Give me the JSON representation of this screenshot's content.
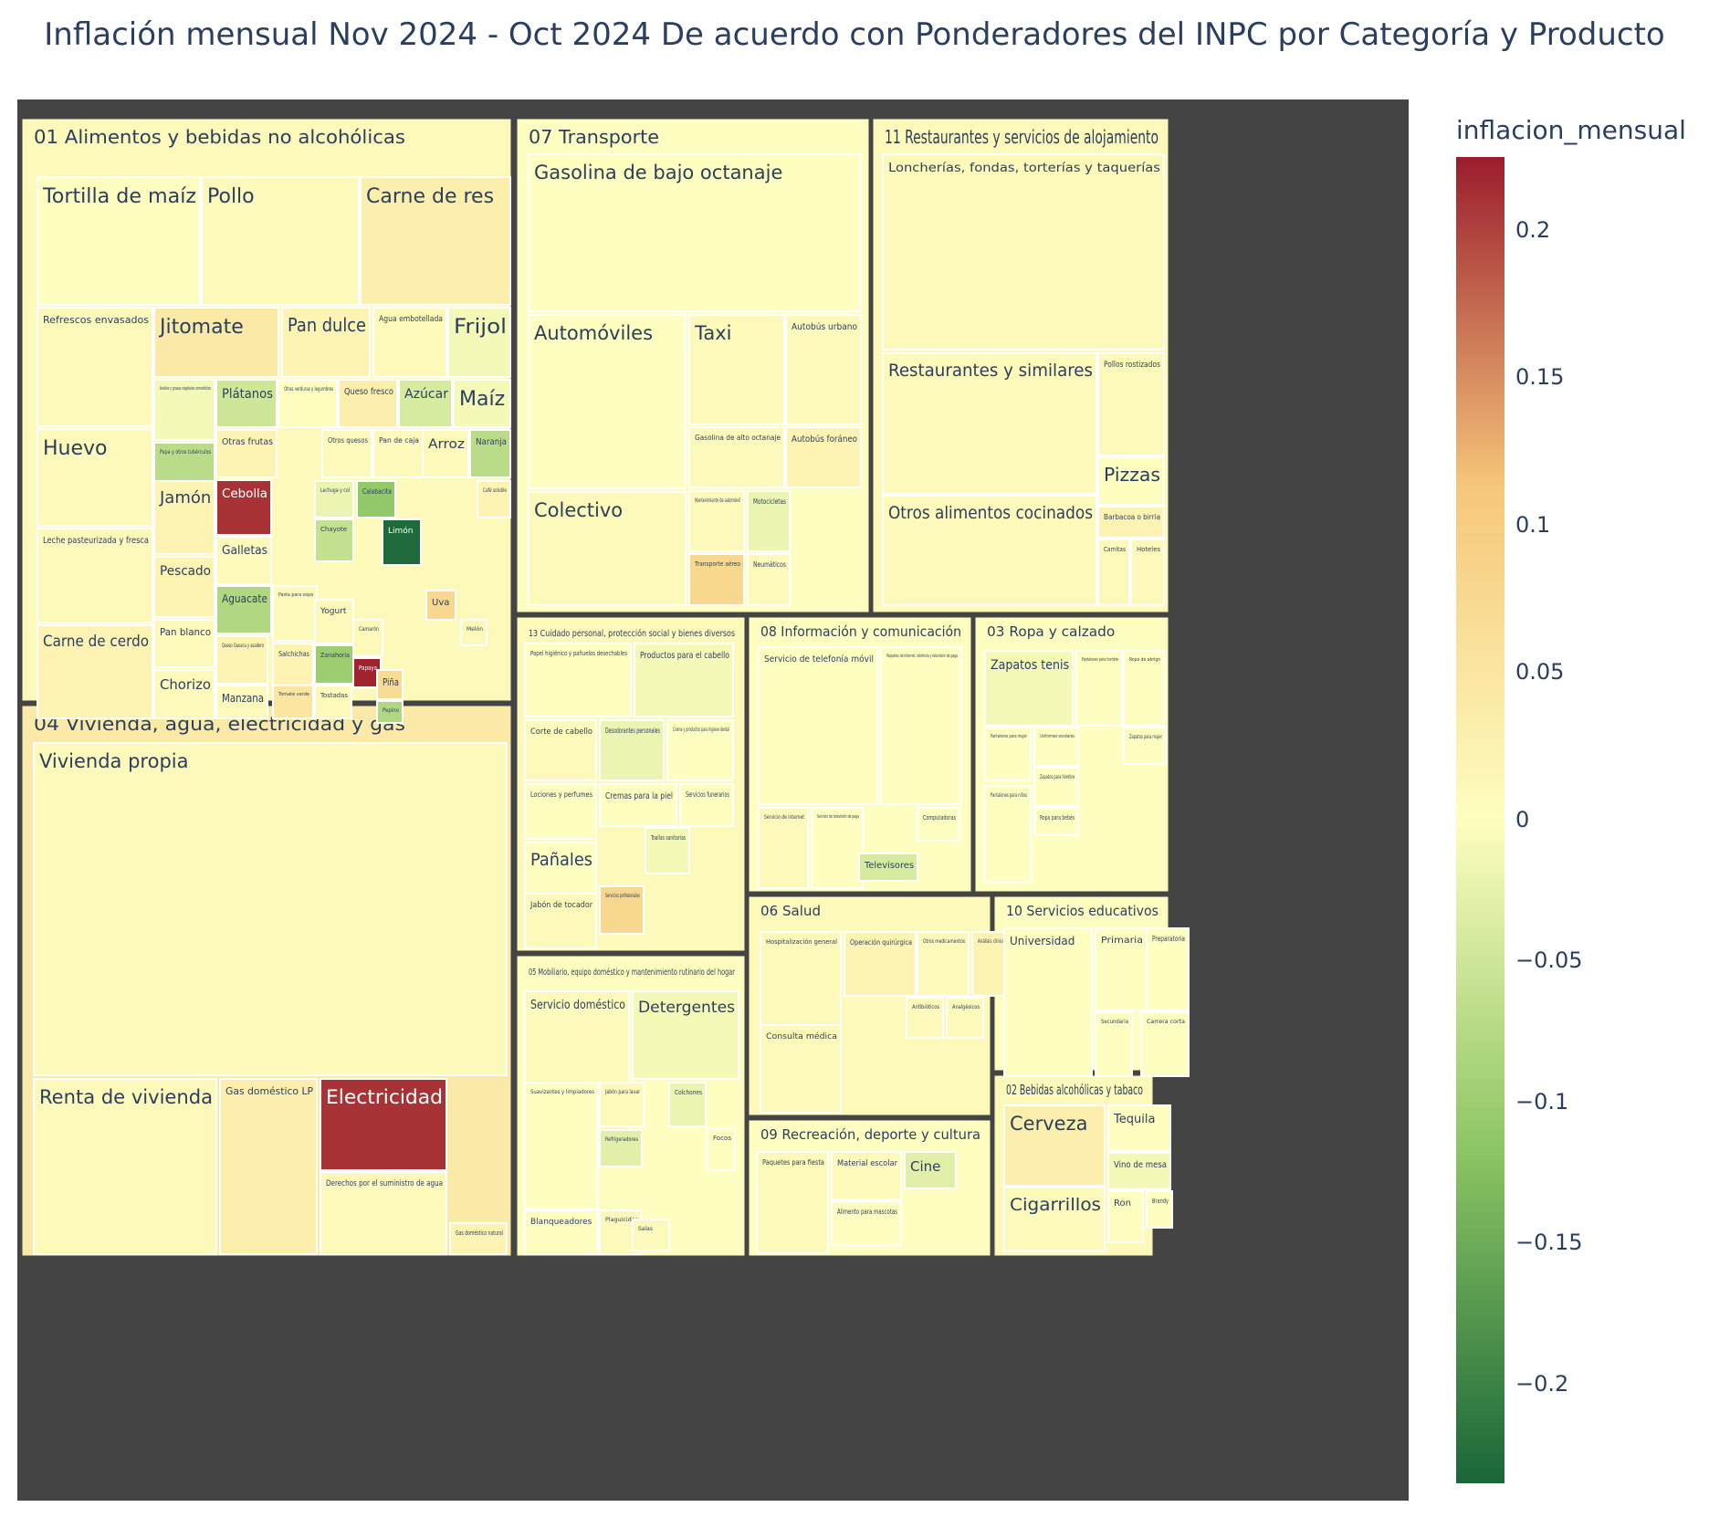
{
  "title": "Inflación mensual Nov 2024 - Oct 2024 De acuerdo con Ponderadores del INPC por Categoría y Producto",
  "colorbar": {
    "title": "inflacion_mensual",
    "ticks": [
      "0.2",
      "0.15",
      "0.1",
      "0.05",
      "0",
      "−0.05",
      "−0.1",
      "−0.15",
      "−0.2"
    ],
    "tick_values": [
      0.2,
      0.15,
      0.1,
      0.05,
      0,
      -0.05,
      -0.1,
      -0.15,
      -0.2
    ],
    "range": [
      -0.235,
      0.225
    ],
    "colorscale": [
      "#1a6638",
      "#8cc563",
      "#fefec0",
      "#f6c77a",
      "#9b1c2d"
    ]
  },
  "chart_data": {
    "type": "treemap",
    "value_field": "inflacion_mensual",
    "groups": [
      {
        "name": "01 Alimentos y bebidas no alcohólicas",
        "value": 0.01,
        "items": [
          {
            "name": "Tortilla de maíz",
            "value": 0.0
          },
          {
            "name": "Pollo",
            "value": 0.01
          },
          {
            "name": "Carne de res",
            "value": 0.03
          },
          {
            "name": "Refrescos envasados",
            "value": 0.01
          },
          {
            "name": "Jitomate",
            "value": 0.04
          },
          {
            "name": "Pan dulce",
            "value": 0.02
          },
          {
            "name": "Agua embotellada",
            "value": 0.01
          },
          {
            "name": "Frijol",
            "value": -0.01
          },
          {
            "name": "Huevo",
            "value": 0.01
          },
          {
            "name": "Aceites y grasas vegetales comestibles",
            "value": -0.01
          },
          {
            "name": "Plátanos",
            "value": -0.05
          },
          {
            "name": "Otras verduras y legumbres",
            "value": 0.0
          },
          {
            "name": "Queso fresco",
            "value": 0.03
          },
          {
            "name": "Azúcar",
            "value": -0.04
          },
          {
            "name": "Maíz",
            "value": -0.01
          },
          {
            "name": "Papa y otros tubérculos",
            "value": -0.07
          },
          {
            "name": "Otras frutas",
            "value": 0.02
          },
          {
            "name": "Otros quesos",
            "value": 0.01
          },
          {
            "name": "Pan de caja",
            "value": 0.01
          },
          {
            "name": "Arroz",
            "value": 0.01
          },
          {
            "name": "Naranja",
            "value": -0.07
          },
          {
            "name": "Leche pasteurizada y fresca",
            "value": 0.01
          },
          {
            "name": "Jamón",
            "value": 0.02
          },
          {
            "name": "Cebolla",
            "value": 0.21
          },
          {
            "name": "Lechuga y col",
            "value": -0.02
          },
          {
            "name": "Calabacita",
            "value": -0.11
          },
          {
            "name": "Café soluble",
            "value": 0.02
          },
          {
            "name": "Galletas",
            "value": 0.01
          },
          {
            "name": "Chayote",
            "value": -0.06
          },
          {
            "name": "Limón",
            "value": -0.23
          },
          {
            "name": "Pescado",
            "value": 0.02
          },
          {
            "name": "Aguacate",
            "value": -0.08
          },
          {
            "name": "Pasta para sopa",
            "value": 0.01
          },
          {
            "name": "Yogurt",
            "value": 0.01
          },
          {
            "name": "Uva",
            "value": 0.08
          },
          {
            "name": "Carne de cerdo",
            "value": 0.02
          },
          {
            "name": "Pan blanco",
            "value": 0.01
          },
          {
            "name": "Queso Oaxaca y asadero",
            "value": 0.02
          },
          {
            "name": "Salchichas",
            "value": 0.02
          },
          {
            "name": "Camarón",
            "value": 0.01
          },
          {
            "name": "Melón",
            "value": 0.01
          },
          {
            "name": "Zanahoria",
            "value": -0.1
          },
          {
            "name": "Papaya",
            "value": 0.22
          },
          {
            "name": "Chorizo",
            "value": 0.01
          },
          {
            "name": "Manzana",
            "value": 0.01
          },
          {
            "name": "Tomate verde",
            "value": 0.05
          },
          {
            "name": "Tostadas",
            "value": 0.01
          },
          {
            "name": "Piña",
            "value": 0.07
          },
          {
            "name": "Pepino",
            "value": -0.08
          }
        ]
      },
      {
        "name": "07 Transporte",
        "value": 0.0,
        "items": [
          {
            "name": "Gasolina de bajo octanaje",
            "value": 0.0
          },
          {
            "name": "Automóviles",
            "value": 0.0
          },
          {
            "name": "Taxi",
            "value": 0.01
          },
          {
            "name": "Autobús urbano",
            "value": 0.01
          },
          {
            "name": "Gasolina de alto octanaje",
            "value": 0.01
          },
          {
            "name": "Autobús foráneo",
            "value": 0.02
          },
          {
            "name": "Colectivo",
            "value": 0.01
          },
          {
            "name": "Mantenimiento de automóvil",
            "value": 0.01
          },
          {
            "name": "Motocicletas",
            "value": -0.02
          },
          {
            "name": "Transporte aéreo",
            "value": 0.08
          },
          {
            "name": "Neumáticos",
            "value": 0.01
          }
        ]
      },
      {
        "name": "11 Restaurantes y servicios de alojamiento",
        "value": 0.01,
        "items": [
          {
            "name": "Loncherías, fondas, torterías y taquerías",
            "value": 0.01
          },
          {
            "name": "Restaurantes y similares",
            "value": 0.01
          },
          {
            "name": "Pollos rostizados",
            "value": 0.01
          },
          {
            "name": "Pizzas",
            "value": 0.0
          },
          {
            "name": "Otros alimentos cocinados",
            "value": 0.01
          },
          {
            "name": "Barbacoa o birria",
            "value": 0.02
          },
          {
            "name": "Carnitas",
            "value": 0.01
          },
          {
            "name": "Hoteles",
            "value": 0.01
          }
        ]
      },
      {
        "name": "04 Vivienda, agua, electricidad y gas",
        "value": 0.04,
        "items": [
          {
            "name": "Vivienda propia",
            "value": 0.01
          },
          {
            "name": "Renta de vivienda",
            "value": 0.01
          },
          {
            "name": "Gas doméstico LP",
            "value": 0.03
          },
          {
            "name": "Electricidad",
            "value": 0.21
          },
          {
            "name": "Derechos por el suministro de agua",
            "value": 0.01
          },
          {
            "name": "Gas doméstico natural",
            "value": 0.02
          }
        ]
      },
      {
        "name": "13 Cuidado personal, protección social y bienes diversos",
        "value": 0.01,
        "items": [
          {
            "name": "Papel higiénico y pañuelos desechables",
            "value": 0.0
          },
          {
            "name": "Productos para el cabello",
            "value": -0.01
          },
          {
            "name": "Corte de cabello",
            "value": 0.01
          },
          {
            "name": "Desodorantes personales",
            "value": -0.02
          },
          {
            "name": "Crema y productos para higiene dental",
            "value": 0.0
          },
          {
            "name": "Lociones y perfumes",
            "value": 0.0
          },
          {
            "name": "Cremas para la piel",
            "value": 0.0
          },
          {
            "name": "Servicios funerarios",
            "value": 0.0
          },
          {
            "name": "Pañales",
            "value": 0.0
          },
          {
            "name": "Toallas sanitarias",
            "value": -0.01
          },
          {
            "name": "Jabón de tocador",
            "value": 0.01
          },
          {
            "name": "Servicios profesionales",
            "value": 0.08
          }
        ]
      },
      {
        "name": "08 Información y comunicación",
        "value": 0.0,
        "items": [
          {
            "name": "Servicio de telefonía móvil",
            "value": 0.0
          },
          {
            "name": "Paquetes de internet, telefonía y televisión de paga",
            "value": 0.0
          },
          {
            "name": "Servicio de internet",
            "value": 0.01
          },
          {
            "name": "Servicio de televisión de paga",
            "value": 0.0
          },
          {
            "name": "Computadoras",
            "value": 0.0
          },
          {
            "name": "Televisores",
            "value": -0.04
          }
        ]
      },
      {
        "name": "03 Ropa y calzado",
        "value": 0.0,
        "items": [
          {
            "name": "Zapatos tenis",
            "value": -0.01
          },
          {
            "name": "Pantalones para hombre",
            "value": 0.0
          },
          {
            "name": "Ropa de abrigo",
            "value": 0.0
          },
          {
            "name": "Pantalones para mujer",
            "value": 0.0
          },
          {
            "name": "Uniformes escolares",
            "value": 0.0
          },
          {
            "name": "Zapatos para mujer",
            "value": 0.0
          },
          {
            "name": "Pantalones para niños",
            "value": 0.0
          },
          {
            "name": "Zapatos para hombre",
            "value": 0.0
          },
          {
            "name": "Ropa para bebés",
            "value": 0.0
          }
        ]
      },
      {
        "name": "05 Mobiliario, equipo doméstico y mantenimiento rutinario del hogar",
        "value": 0.0,
        "items": [
          {
            "name": "Servicio doméstico",
            "value": 0.01
          },
          {
            "name": "Detergentes",
            "value": -0.01
          },
          {
            "name": "Suavizantes y limpiadores",
            "value": 0.0
          },
          {
            "name": "Jabón para lavar",
            "value": 0.01
          },
          {
            "name": "Colchones",
            "value": -0.02
          },
          {
            "name": "Refrigeradores",
            "value": -0.03
          },
          {
            "name": "Focos",
            "value": 0.0
          },
          {
            "name": "Blanqueadores",
            "value": 0.0
          },
          {
            "name": "Plaguicidas",
            "value": 0.01
          },
          {
            "name": "Salas",
            "value": 0.01
          }
        ]
      },
      {
        "name": "06 Salud",
        "value": 0.01,
        "items": [
          {
            "name": "Hospitalización general",
            "value": 0.01
          },
          {
            "name": "Operación quirúrgica",
            "value": 0.02
          },
          {
            "name": "Otros medicamentos",
            "value": 0.01
          },
          {
            "name": "Análisis clínicos",
            "value": 0.02
          },
          {
            "name": "Consulta médica",
            "value": 0.01
          },
          {
            "name": "Antibióticos",
            "value": 0.01
          },
          {
            "name": "Analgésicos",
            "value": 0.01
          }
        ]
      },
      {
        "name": "10 Servicios educativos",
        "value": 0.0,
        "items": [
          {
            "name": "Universidad",
            "value": 0.0
          },
          {
            "name": "Primaria",
            "value": 0.0
          },
          {
            "name": "Preparatoria",
            "value": 0.0
          },
          {
            "name": "Secundaria",
            "value": 0.0
          },
          {
            "name": "Carrera corta",
            "value": 0.0
          }
        ]
      },
      {
        "name": "09 Recreación, deporte y cultura",
        "value": 0.0,
        "items": [
          {
            "name": "Paquetes para fiesta",
            "value": 0.01
          },
          {
            "name": "Material escolar",
            "value": 0.01
          },
          {
            "name": "Cine",
            "value": -0.03
          },
          {
            "name": "Alimento para mascotas",
            "value": 0.0
          }
        ]
      },
      {
        "name": "02 Bebidas alcohólicas y tabaco",
        "value": 0.01,
        "items": [
          {
            "name": "Cerveza",
            "value": 0.03
          },
          {
            "name": "Tequila",
            "value": 0.0
          },
          {
            "name": "Vino de mesa",
            "value": -0.01
          },
          {
            "name": "Cigarrillos",
            "value": 0.01
          },
          {
            "name": "Ron",
            "value": 0.0
          },
          {
            "name": "Brandy",
            "value": 0.0
          }
        ]
      }
    ]
  }
}
